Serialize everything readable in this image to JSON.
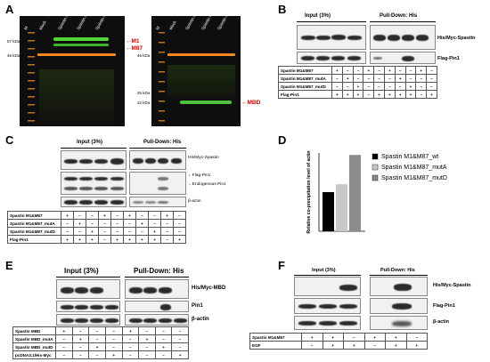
{
  "panels": {
    "A": "A",
    "B": "B",
    "C": "C",
    "D": "D",
    "E": "E",
    "F": "F"
  },
  "panelA": {
    "left_lanes": [
      "M",
      "Mock",
      "Spastin M1&M87",
      "Spastin M1&M87_mutA",
      "Spastin M1&M87_mutD"
    ],
    "left_markers": [
      "57 kDa",
      "46 kDa"
    ],
    "left_arrows": [
      "M1",
      "M87"
    ],
    "right_lanes": [
      "M",
      "Mock",
      "Spastin MBD",
      "Spastin MBD_mutA",
      "Spastin MBD_mutD"
    ],
    "right_markers": [
      "46 kDa",
      "25 kDa",
      "22 kDa"
    ],
    "right_arrow": "MBD"
  },
  "panelB": {
    "input": "Input (3%)",
    "pulldown": "Pull-Down: His",
    "blots": [
      "His/Myc-Spastin",
      "Flag-Pin1"
    ],
    "rows": [
      {
        "name": "Spastin M1&M87",
        "cells": [
          "+",
          "–",
          "–",
          "+",
          "–",
          "+",
          "–",
          "–",
          "+",
          "–"
        ]
      },
      {
        "name": "Spastin M1&M87_mutA",
        "cells": [
          "–",
          "+",
          "–",
          "–",
          "–",
          "–",
          "+",
          "–",
          "–",
          "–"
        ]
      },
      {
        "name": "Spastin M1&M87_mutD",
        "cells": [
          "–",
          "–",
          "+",
          "–",
          "–",
          "–",
          "–",
          "+",
          "–",
          "–"
        ]
      },
      {
        "name": "Flag-Pin1",
        "cells": [
          "+",
          "+",
          "+",
          "–",
          "+",
          "+",
          "+",
          "+",
          "–",
          "+"
        ]
      }
    ]
  },
  "panelC": {
    "input": "Input (3%)",
    "pulldown": "Pull-Down: His",
    "blots": [
      "His/Myc-Spastin",
      "Flag-Pin1",
      "Endogenous Pin1",
      "β-actin"
    ],
    "rows": [
      {
        "name": "Spastin M1&M87",
        "cells": [
          "+",
          "–",
          "–",
          "+",
          "–",
          "+",
          "–",
          "–",
          "+",
          "–"
        ]
      },
      {
        "name": "Spastin M1&M87_mutA",
        "cells": [
          "–",
          "+",
          "–",
          "–",
          "–",
          "–",
          "+",
          "–",
          "–",
          "–"
        ]
      },
      {
        "name": "Spastin M1&M87_mutD",
        "cells": [
          "–",
          "–",
          "+",
          "–",
          "–",
          "–",
          "–",
          "+",
          "–",
          "–"
        ]
      },
      {
        "name": "Flag-Pin1",
        "cells": [
          "+",
          "+",
          "+",
          "–",
          "+",
          "+",
          "+",
          "+",
          "–",
          "+"
        ]
      }
    ]
  },
  "chart_data": {
    "type": "bar",
    "categories": [
      "Spastin M1&M87_wt",
      "Spastin M1&M87_mutA",
      "Spastin M1&M87_mutD"
    ],
    "values": [
      1.0,
      1.2,
      1.95
    ],
    "ylabel": "Relative co-precipitation level of actin",
    "xlabel": "",
    "ylim": [
      0,
      2
    ],
    "colors": [
      "#000000",
      "#c8c8c8",
      "#8c8c8c"
    ],
    "legend": [
      "Spastin M1&M87_wt",
      "Spastin M1&M87_mutA",
      "Spastin M1&M87_mutD"
    ],
    "legend_position": "top-right",
    "grid": false
  },
  "panelE": {
    "input": "Input (3%)",
    "pulldown": "Pull-Down: His",
    "blots": [
      "His/Myc-MBD",
      "Pin1",
      "β-actin"
    ],
    "rows": [
      {
        "name": "Spastin MBD",
        "cells": [
          "+",
          "–",
          "–",
          "–",
          "+",
          "–",
          "–",
          "–"
        ]
      },
      {
        "name": "Spastin MBD_mutA",
        "cells": [
          "–",
          "+",
          "–",
          "–",
          "–",
          "+",
          "–",
          "–"
        ]
      },
      {
        "name": "Spastin MBD_mutD",
        "cells": [
          "–",
          "–",
          "+",
          "–",
          "–",
          "–",
          "+",
          "–"
        ]
      },
      {
        "name": "pcDNA3.1/His-Myc",
        "cells": [
          "–",
          "–",
          "–",
          "+",
          "–",
          "–",
          "–",
          "+"
        ]
      }
    ]
  },
  "panelF": {
    "input": "Input (3%)",
    "pulldown": "Pull-Down: His",
    "blots": [
      "His/Myc-Spastin",
      "Flag-Pin1",
      "β-actin"
    ],
    "rows": [
      {
        "name": "Spastin M1&M87",
        "cells": [
          "+",
          "+",
          "–",
          "+",
          "+",
          "–"
        ]
      },
      {
        "name": "EGF",
        "cells": [
          "–",
          "+",
          "+",
          "–",
          "+",
          "+"
        ]
      }
    ]
  }
}
